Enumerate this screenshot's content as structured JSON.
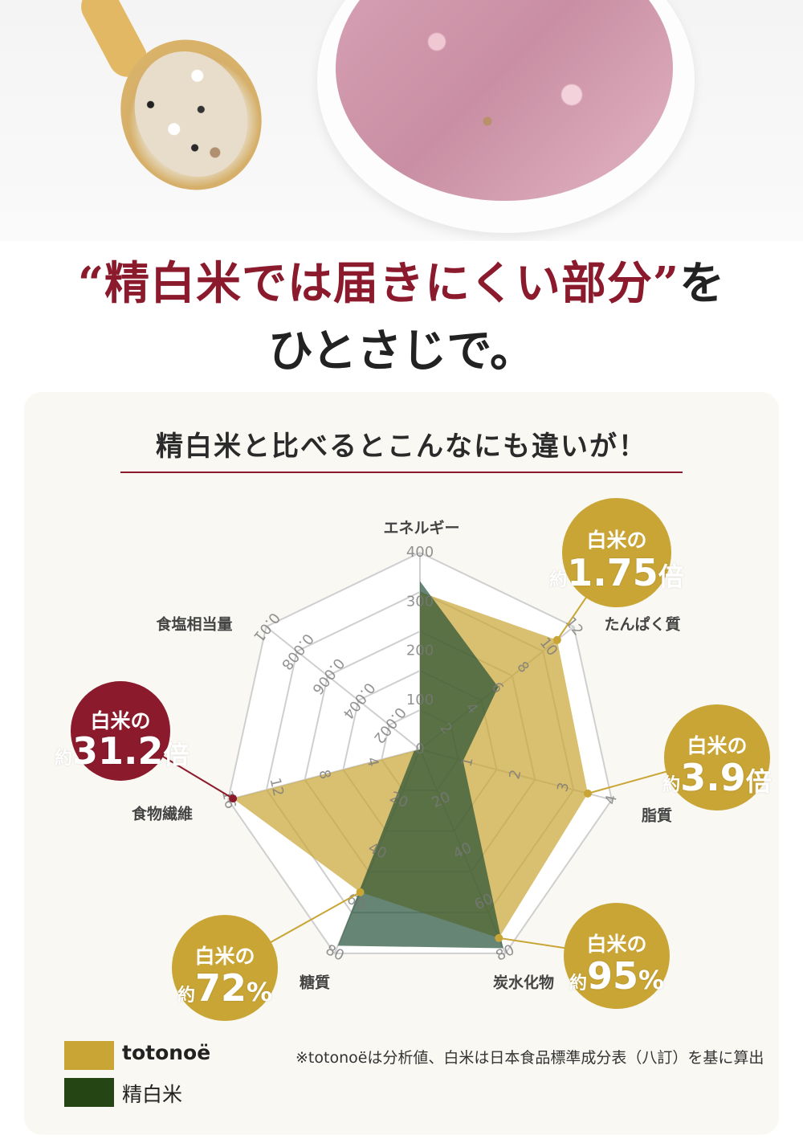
{
  "headline": {
    "line1_quoted": "“精白米では届きにくい部分”",
    "line1_tail": "を",
    "line2": "ひとさじで。"
  },
  "subtitle": "精白米と比べるとこんなにも違いが！",
  "colors": {
    "maroon": "#8a1a2c",
    "gold": "#c9a535",
    "totonoe": "#c9a535",
    "rice": "#264515",
    "rice_fill": "#1e4b32"
  },
  "chart_data": {
    "type": "radar",
    "axes": [
      {
        "label": "エネルギー",
        "max": 400,
        "ticks": [
          "0",
          "100",
          "200",
          "300",
          "400"
        ]
      },
      {
        "label": "たんぱく質",
        "max": 12,
        "ticks": [
          "2",
          "4",
          "6",
          "8",
          "10",
          "12"
        ]
      },
      {
        "label": "脂質",
        "max": 4,
        "ticks": [
          "1",
          "2",
          "3",
          "4"
        ]
      },
      {
        "label": "炭水化物",
        "max": 80,
        "ticks": [
          "20",
          "40",
          "60",
          "80"
        ]
      },
      {
        "label": "糖質",
        "max": 80,
        "ticks": [
          "20",
          "40",
          "60",
          "80"
        ]
      },
      {
        "label": "食物繊維",
        "max": 16,
        "ticks": [
          "4",
          "8",
          "12",
          "16"
        ]
      },
      {
        "label": "食塩相当量",
        "max": 0.01,
        "ticks": [
          "0.002",
          "0.004",
          "0.006",
          "0.008",
          "0.01"
        ]
      }
    ],
    "series": [
      {
        "name": "totonoë",
        "values": [
          320,
          10.7,
          3.5,
          74,
          56,
          15.6,
          0
        ]
      },
      {
        "name": "精白米",
        "values": [
          342,
          6.1,
          0.9,
          78,
          77,
          0.5,
          0
        ]
      }
    ],
    "legend": "bottom-left",
    "callouts": [
      {
        "axis": "たんぱく質",
        "line1": "白米の",
        "prefix": "約",
        "value": "1.75",
        "suffix": "倍",
        "color": "#c9a535"
      },
      {
        "axis": "脂質",
        "line1": "白米の",
        "prefix": "約",
        "value": "3.9",
        "suffix": "倍",
        "color": "#c9a535"
      },
      {
        "axis": "炭水化物",
        "line1": "白米の",
        "prefix": "約",
        "value": "95",
        "suffix": "%",
        "color": "#c9a535"
      },
      {
        "axis": "糖質",
        "line1": "白米の",
        "prefix": "約",
        "value": "72",
        "suffix": "%",
        "color": "#c9a535"
      },
      {
        "axis": "食物繊維",
        "line1": "白米の",
        "prefix": "約",
        "value": "31.2",
        "suffix": "倍",
        "color": "#8a1a2c"
      }
    ]
  },
  "legend": [
    {
      "label": "totonoë",
      "color": "#c9a535"
    },
    {
      "label": "精白米",
      "color": "#264515"
    }
  ],
  "footnote": "※totonoëは分析値、白米は日本食品標準成分表（八訂）を基に算出"
}
